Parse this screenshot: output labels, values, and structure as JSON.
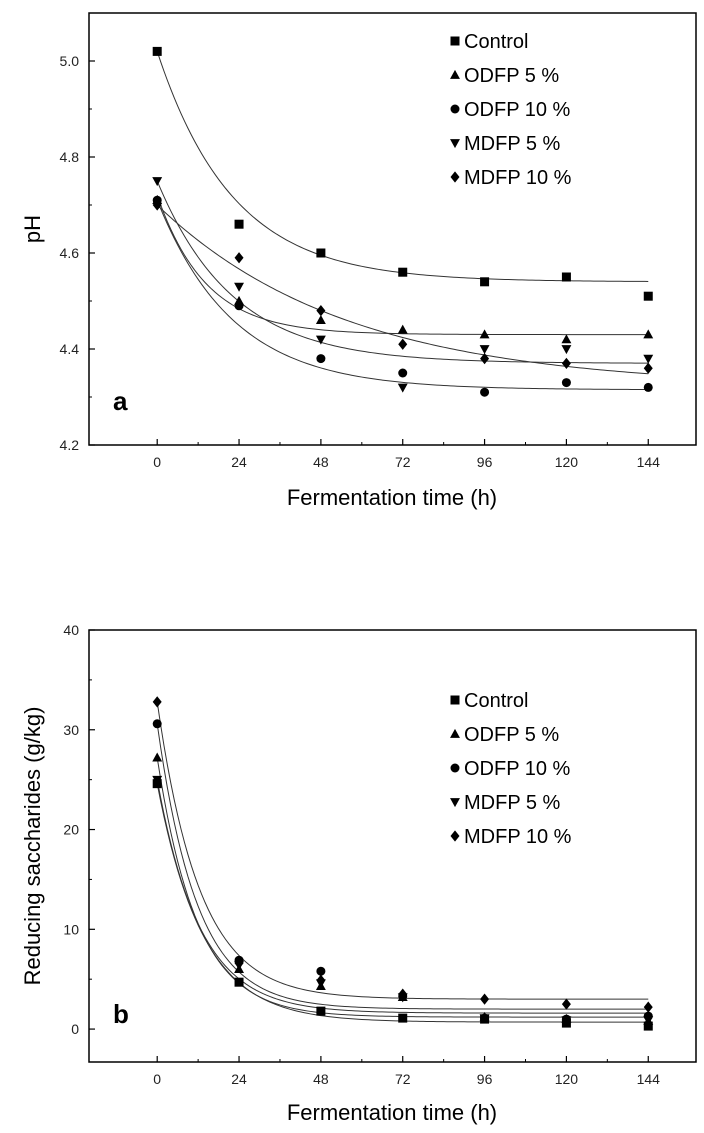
{
  "chart_data": [
    {
      "panel": "a",
      "type": "scatter",
      "xlabel": "Fermentation time (h)",
      "ylabel": "pH",
      "xlim": [
        -20,
        158
      ],
      "ylim": [
        4.2,
        5.1
      ],
      "xticks": [
        0,
        24,
        48,
        72,
        96,
        120,
        144
      ],
      "yticks": [
        "4.2",
        "4.4",
        "4.6",
        "4.8",
        "5.0"
      ],
      "legend": "top-right",
      "x": [
        0,
        24,
        48,
        72,
        96,
        120,
        144
      ],
      "series": [
        {
          "name": "Control",
          "marker": "square",
          "values": [
            5.02,
            4.66,
            4.6,
            4.56,
            4.54,
            4.55,
            4.51
          ],
          "fit": {
            "plateau": 4.54,
            "amplitude": 0.48,
            "rate": 0.045
          }
        },
        {
          "name": "ODFP 5 %",
          "marker": "triangle-up",
          "values": [
            4.71,
            4.5,
            4.46,
            4.44,
            4.43,
            4.42,
            4.43
          ],
          "fit": {
            "plateau": 4.43,
            "amplitude": 0.29,
            "rate": 0.07
          }
        },
        {
          "name": "ODFP 10 %",
          "marker": "circle",
          "values": [
            4.71,
            4.49,
            4.38,
            4.35,
            4.31,
            4.33,
            4.32
          ],
          "fit": {
            "plateau": 4.315,
            "amplitude": 0.395,
            "rate": 0.045
          }
        },
        {
          "name": "MDFP 5 %",
          "marker": "triangle-down",
          "values": [
            4.75,
            4.53,
            4.42,
            4.32,
            4.4,
            4.4,
            4.38
          ],
          "fit": {
            "plateau": 4.37,
            "amplitude": 0.38,
            "rate": 0.045
          }
        },
        {
          "name": "MDFP 10 %",
          "marker": "diamond",
          "values": [
            4.7,
            4.59,
            4.48,
            4.41,
            4.38,
            4.37,
            4.36
          ],
          "fit": {
            "plateau": 4.32,
            "amplitude": 0.38,
            "rate": 0.018
          }
        }
      ]
    },
    {
      "panel": "b",
      "type": "scatter",
      "xlabel": "Fermentation time (h)",
      "ylabel": "Reducing saccharides (g/kg)",
      "xlim": [
        -20,
        158
      ],
      "ylim": [
        -3.3,
        40
      ],
      "xticks": [
        0,
        24,
        48,
        72,
        96,
        120,
        144
      ],
      "yticks": [
        "0",
        "10",
        "20",
        "30",
        "40"
      ],
      "legend": "right",
      "x": [
        0,
        24,
        48,
        72,
        96,
        120,
        144
      ],
      "series": [
        {
          "name": "Control",
          "marker": "square",
          "values": [
            24.6,
            4.7,
            1.8,
            1.1,
            1.0,
            0.6,
            0.3
          ],
          "fit": {
            "plateau": 0.7,
            "amplitude": 23.9,
            "rate": 0.075
          }
        },
        {
          "name": "ODFP 5 %",
          "marker": "triangle-up",
          "values": [
            27.2,
            6.0,
            4.3,
            3.2,
            1.2,
            1.0,
            0.8
          ],
          "fit": {
            "plateau": 1.2,
            "amplitude": 26.0,
            "rate": 0.085
          }
        },
        {
          "name": "ODFP 10 %",
          "marker": "circle",
          "values": [
            30.6,
            6.9,
            5.8,
            3.3,
            1.1,
            1.0,
            1.3
          ],
          "fit": {
            "plateau": 2.0,
            "amplitude": 28.6,
            "rate": 0.085
          }
        },
        {
          "name": "MDFP 5 %",
          "marker": "triangle-down",
          "values": [
            25.0,
            6.4,
            4.6,
            3.2,
            1.1,
            0.9,
            0.9
          ],
          "fit": {
            "plateau": 1.6,
            "amplitude": 23.4,
            "rate": 0.08
          }
        },
        {
          "name": "MDFP 10 %",
          "marker": "diamond",
          "values": [
            32.8,
            6.6,
            4.9,
            3.5,
            3.0,
            2.5,
            2.2
          ],
          "fit": {
            "plateau": 3.0,
            "amplitude": 29.8,
            "rate": 0.08
          }
        }
      ]
    }
  ]
}
